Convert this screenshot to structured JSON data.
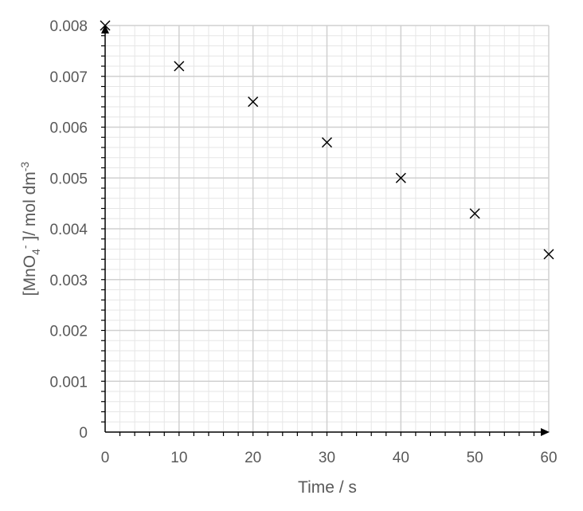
{
  "chart_data": {
    "type": "scatter",
    "marker": "x",
    "xlabel": "Time / s",
    "ylabel": {
      "main": "[MnO",
      "sub": "4",
      "sup_charge": "-",
      "rest": " ]/ mol dm",
      "unit_exp": "-3"
    },
    "xlim": [
      0,
      60
    ],
    "ylim": [
      0,
      0.008
    ],
    "x_ticks": [
      0,
      10,
      20,
      30,
      40,
      50,
      60
    ],
    "x_tick_labels": [
      "0",
      "10",
      "20",
      "30",
      "40",
      "50",
      "60"
    ],
    "y_ticks": [
      0,
      0.001,
      0.002,
      0.003,
      0.004,
      0.005,
      0.006,
      0.007,
      0.008
    ],
    "y_tick_labels": [
      "0",
      "0.001",
      "0.002",
      "0.003",
      "0.004",
      "0.005",
      "0.006",
      "0.007",
      "0.008"
    ],
    "grid": true,
    "minor_grid": true,
    "series": [
      {
        "x": [
          0,
          10,
          20,
          30,
          40,
          50,
          60
        ],
        "y": [
          0.008,
          0.0072,
          0.0065,
          0.0057,
          0.005,
          0.0043,
          0.0035
        ]
      }
    ],
    "colors": {
      "major_grid": "#d0d0d0",
      "minor_grid": "#e6e6e6",
      "axis": "#000000",
      "marker": "#000000",
      "text": "#595959"
    }
  }
}
